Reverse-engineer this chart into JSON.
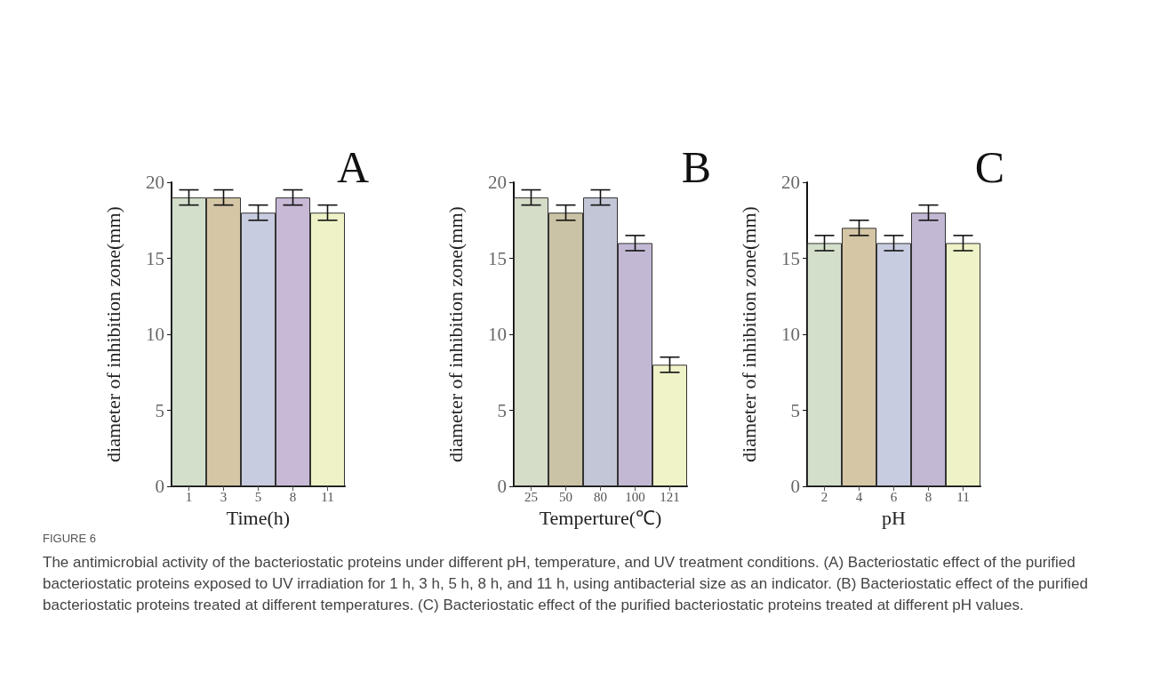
{
  "chart_data": [
    {
      "type": "bar",
      "title": "A",
      "xlabel": "Time(h)",
      "ylabel": "diameter of inhibition zone(mm)",
      "categories": [
        "1",
        "3",
        "5",
        "8",
        "11"
      ],
      "values": [
        19,
        19,
        18,
        19,
        18
      ],
      "errors": [
        0.5,
        0.5,
        0.5,
        0.5,
        0.5
      ],
      "colors": [
        "#d3dfcb",
        "#d5c6a6",
        "#c8cce0",
        "#c8b9d6",
        "#eef2c6"
      ],
      "ylim": [
        0,
        20
      ],
      "yticks": [
        0,
        5,
        10,
        15,
        20
      ],
      "grid": false
    },
    {
      "type": "bar",
      "title": "B",
      "xlabel": "Temperture(℃)",
      "ylabel": "diameter of inhibition zone(mm)",
      "categories": [
        "25",
        "50",
        "80",
        "100",
        "121"
      ],
      "values": [
        19,
        18,
        19,
        16,
        8
      ],
      "errors": [
        0.5,
        0.5,
        0.5,
        0.5,
        0.5
      ],
      "colors": [
        "#d5dcc8",
        "#cbc3a5",
        "#c3c6d6",
        "#c2b8d4",
        "#f0f2c8"
      ],
      "ylim": [
        0,
        20
      ],
      "yticks": [
        0,
        5,
        10,
        15,
        20
      ],
      "grid": false
    },
    {
      "type": "bar",
      "title": "C",
      "xlabel": "pH",
      "ylabel": "diameter of inhibition zone(mm)",
      "categories": [
        "2",
        "4",
        "6",
        "8",
        "11"
      ],
      "values": [
        16,
        17,
        16,
        18,
        16
      ],
      "errors": [
        0.5,
        0.5,
        0.5,
        0.5,
        0.5
      ],
      "colors": [
        "#d3dfcb",
        "#d5c6a6",
        "#c8cce0",
        "#c2b8d4",
        "#eef2c6"
      ],
      "ylim": [
        0,
        20
      ],
      "yticks": [
        0,
        5,
        10,
        15,
        20
      ],
      "grid": false
    },
    {
      "type": "other",
      "annotations": [
        "FIGURE 6",
        "The antimicrobial activity of the bacteriostatic proteins under different pH, temperature, and UV treatment conditions. (A) Bacteriostatic effect of the purified bacteriostatic proteins exposed to UV irradiation for 1 h, 3 h, 5 h, 8 h, and 11 h, using antibacterial size as an indicator. (B) Bacteriostatic effect of the purified bacteriostatic proteins treated at different temperatures. (C) Bacteriostatic effect of the purified bacteriostatic proteins treated at different pH values."
      ]
    }
  ]
}
